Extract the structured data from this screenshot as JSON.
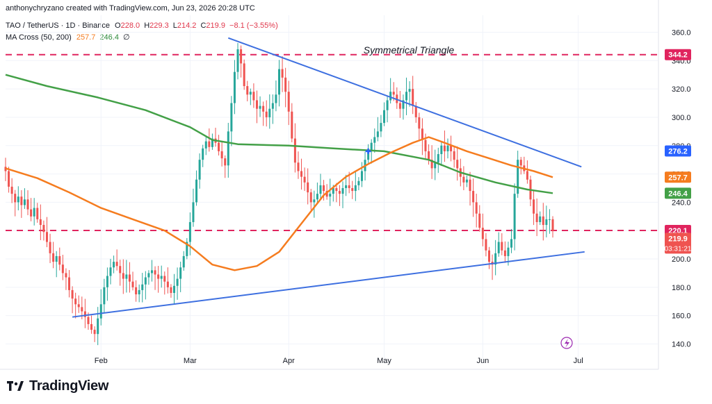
{
  "header": {
    "credit": "anthonychryzano created with TradingView.com, Jun 23, 2026 20:28 UTC",
    "symbol": "TAO / TetherUS · 1D · Binance",
    "ohlc": {
      "o_label": "O",
      "o": "228.0",
      "h_label": "H",
      "h": "229.3",
      "l_label": "L",
      "l": "214.2",
      "c_label": "C",
      "c": "219.9",
      "change": "−8.1 (−3.55%)"
    },
    "indicator": {
      "name": "MA Cross (50, 200)",
      "ma50": "257.7",
      "ma200": "246.4",
      "extra": "∅"
    }
  },
  "brand": {
    "name": "TradingView",
    "logo_icon": "tradingview-logo-icon"
  },
  "colors": {
    "up": "#26a69a",
    "down": "#ef5350",
    "ma50": "#f57c1f",
    "ma200": "#43a047",
    "trend": "#3d6fe0",
    "level": "#e0245e"
  },
  "chart_data": {
    "type": "candlestick",
    "title": "",
    "annotation": "Symmetrical Triangle",
    "y_range": [
      127,
      372
    ],
    "y_ticks": [
      "360.0",
      "340.0",
      "320.0",
      "300.0",
      "280.0",
      "260.0",
      "240.0",
      "220.0",
      "200.0",
      "180.0",
      "160.0",
      "140.0"
    ],
    "x_range": [
      "2026-01-02",
      "2026-07-26"
    ],
    "x_ticks": [
      {
        "label": "Feb",
        "date": "2026-02-01"
      },
      {
        "label": "Mar",
        "date": "2026-03-01"
      },
      {
        "label": "Apr",
        "date": "2026-04-01"
      },
      {
        "label": "May",
        "date": "2026-05-01"
      },
      {
        "label": "Jun",
        "date": "2026-06-01"
      },
      {
        "label": "Jul",
        "date": "2026-07-01"
      }
    ],
    "grid": true,
    "closes": [
      [
        "2026-01-02",
        262
      ],
      [
        "2026-01-03",
        251
      ],
      [
        "2026-01-04",
        246
      ],
      [
        "2026-01-05",
        240
      ],
      [
        "2026-01-06",
        244
      ],
      [
        "2026-01-07",
        238
      ],
      [
        "2026-01-08",
        242
      ],
      [
        "2026-01-09",
        235
      ],
      [
        "2026-01-10",
        230
      ],
      [
        "2026-01-11",
        236
      ],
      [
        "2026-01-12",
        228
      ],
      [
        "2026-01-13",
        224
      ],
      [
        "2026-01-14",
        219
      ],
      [
        "2026-01-15",
        212
      ],
      [
        "2026-01-16",
        204
      ],
      [
        "2026-01-17",
        198
      ],
      [
        "2026-01-18",
        202
      ],
      [
        "2026-01-19",
        196
      ],
      [
        "2026-01-20",
        190
      ],
      [
        "2026-01-21",
        187
      ],
      [
        "2026-01-22",
        178
      ],
      [
        "2026-01-23",
        172
      ],
      [
        "2026-01-24",
        168
      ],
      [
        "2026-01-25",
        166
      ],
      [
        "2026-01-26",
        163
      ],
      [
        "2026-01-27",
        159
      ],
      [
        "2026-01-28",
        154
      ],
      [
        "2026-01-29",
        150
      ],
      [
        "2026-01-30",
        147
      ],
      [
        "2026-01-31",
        158
      ],
      [
        "2026-02-01",
        168
      ],
      [
        "2026-02-02",
        180
      ],
      [
        "2026-02-03",
        188
      ],
      [
        "2026-02-04",
        194
      ],
      [
        "2026-02-05",
        198
      ],
      [
        "2026-02-06",
        195
      ],
      [
        "2026-02-07",
        190
      ],
      [
        "2026-02-08",
        186
      ],
      [
        "2026-02-09",
        189
      ],
      [
        "2026-02-10",
        184
      ],
      [
        "2026-02-11",
        180
      ],
      [
        "2026-02-12",
        175
      ],
      [
        "2026-02-13",
        178
      ],
      [
        "2026-02-14",
        182
      ],
      [
        "2026-02-15",
        187
      ],
      [
        "2026-02-16",
        190
      ],
      [
        "2026-02-17",
        192
      ],
      [
        "2026-02-18",
        189
      ],
      [
        "2026-02-19",
        186
      ],
      [
        "2026-02-20",
        188
      ],
      [
        "2026-02-21",
        184
      ],
      [
        "2026-02-22",
        180
      ],
      [
        "2026-02-23",
        176
      ],
      [
        "2026-02-24",
        181
      ],
      [
        "2026-02-25",
        186
      ],
      [
        "2026-02-26",
        194
      ],
      [
        "2026-02-27",
        202
      ],
      [
        "2026-02-28",
        212
      ],
      [
        "2026-03-01",
        226
      ],
      [
        "2026-03-02",
        240
      ],
      [
        "2026-03-03",
        256
      ],
      [
        "2026-03-04",
        270
      ],
      [
        "2026-03-05",
        278
      ],
      [
        "2026-03-06",
        283
      ],
      [
        "2026-03-07",
        279
      ],
      [
        "2026-03-08",
        285
      ],
      [
        "2026-03-09",
        282
      ],
      [
        "2026-03-10",
        276
      ],
      [
        "2026-03-11",
        271
      ],
      [
        "2026-03-12",
        266
      ],
      [
        "2026-03-13",
        290
      ],
      [
        "2026-03-14",
        310
      ],
      [
        "2026-03-15",
        332
      ],
      [
        "2026-03-16",
        348
      ],
      [
        "2026-03-17",
        338
      ],
      [
        "2026-03-18",
        322
      ],
      [
        "2026-03-19",
        316
      ],
      [
        "2026-03-20",
        318
      ],
      [
        "2026-03-21",
        312
      ],
      [
        "2026-03-22",
        306
      ],
      [
        "2026-03-23",
        308
      ],
      [
        "2026-03-24",
        304
      ],
      [
        "2026-03-25",
        300
      ],
      [
        "2026-03-26",
        306
      ],
      [
        "2026-03-27",
        310
      ],
      [
        "2026-03-28",
        316
      ],
      [
        "2026-03-29",
        334
      ],
      [
        "2026-03-30",
        328
      ],
      [
        "2026-03-31",
        318
      ],
      [
        "2026-04-01",
        304
      ],
      [
        "2026-04-02",
        285
      ],
      [
        "2026-04-03",
        268
      ],
      [
        "2026-04-04",
        262
      ],
      [
        "2026-04-05",
        258
      ],
      [
        "2026-04-06",
        254
      ],
      [
        "2026-04-07",
        247
      ],
      [
        "2026-04-08",
        240
      ],
      [
        "2026-04-09",
        242
      ],
      [
        "2026-04-10",
        246
      ],
      [
        "2026-04-11",
        252
      ],
      [
        "2026-04-12",
        248
      ],
      [
        "2026-04-13",
        244
      ],
      [
        "2026-04-14",
        246
      ],
      [
        "2026-04-15",
        250
      ],
      [
        "2026-04-16",
        248
      ],
      [
        "2026-04-17",
        246
      ],
      [
        "2026-04-18",
        250
      ],
      [
        "2026-04-19",
        252
      ],
      [
        "2026-04-20",
        250
      ],
      [
        "2026-04-21",
        248
      ],
      [
        "2026-04-22",
        252
      ],
      [
        "2026-04-23",
        255
      ],
      [
        "2026-04-24",
        262
      ],
      [
        "2026-04-25",
        270
      ],
      [
        "2026-04-26",
        276
      ],
      [
        "2026-04-27",
        282
      ],
      [
        "2026-04-28",
        286
      ],
      [
        "2026-04-29",
        290
      ],
      [
        "2026-04-30",
        296
      ],
      [
        "2026-05-01",
        305
      ],
      [
        "2026-05-02",
        312
      ],
      [
        "2026-05-03",
        318
      ],
      [
        "2026-05-04",
        316
      ],
      [
        "2026-05-05",
        310
      ],
      [
        "2026-05-06",
        306
      ],
      [
        "2026-05-07",
        312
      ],
      [
        "2026-05-08",
        318
      ],
      [
        "2026-05-09",
        320
      ],
      [
        "2026-05-10",
        308
      ],
      [
        "2026-05-11",
        300
      ],
      [
        "2026-05-12",
        292
      ],
      [
        "2026-05-13",
        284
      ],
      [
        "2026-05-14",
        276
      ],
      [
        "2026-05-15",
        270
      ],
      [
        "2026-05-16",
        264
      ],
      [
        "2026-05-17",
        268
      ],
      [
        "2026-05-18",
        274
      ],
      [
        "2026-05-19",
        280
      ],
      [
        "2026-05-20",
        276
      ],
      [
        "2026-05-21",
        280
      ],
      [
        "2026-05-22",
        276
      ],
      [
        "2026-05-23",
        270
      ],
      [
        "2026-05-24",
        264
      ],
      [
        "2026-05-25",
        258
      ],
      [
        "2026-05-26",
        254
      ],
      [
        "2026-05-27",
        256
      ],
      [
        "2026-05-28",
        248
      ],
      [
        "2026-05-29",
        240
      ],
      [
        "2026-05-30",
        232
      ],
      [
        "2026-05-31",
        222
      ],
      [
        "2026-06-01",
        214
      ],
      [
        "2026-06-02",
        206
      ],
      [
        "2026-06-03",
        198
      ],
      [
        "2026-06-04",
        196
      ],
      [
        "2026-06-05",
        204
      ],
      [
        "2026-06-06",
        212
      ],
      [
        "2026-06-07",
        206
      ],
      [
        "2026-06-08",
        202
      ],
      [
        "2026-06-09",
        208
      ],
      [
        "2026-06-10",
        214
      ],
      [
        "2026-06-11",
        246
      ],
      [
        "2026-06-12",
        270
      ],
      [
        "2026-06-13",
        266
      ],
      [
        "2026-06-14",
        262
      ],
      [
        "2026-06-15",
        256
      ],
      [
        "2026-06-16",
        242
      ],
      [
        "2026-06-17",
        232
      ],
      [
        "2026-06-18",
        226
      ],
      [
        "2026-06-19",
        230
      ],
      [
        "2026-06-20",
        224
      ],
      [
        "2026-06-21",
        228
      ],
      [
        "2026-06-22",
        228
      ],
      [
        "2026-06-23",
        219.9
      ]
    ],
    "ma50_points": [
      [
        "2026-01-02",
        264
      ],
      [
        "2026-01-12",
        257
      ],
      [
        "2026-01-22",
        247
      ],
      [
        "2026-02-01",
        236
      ],
      [
        "2026-02-11",
        228
      ],
      [
        "2026-02-21",
        220
      ],
      [
        "2026-03-01",
        209
      ],
      [
        "2026-03-08",
        196
      ],
      [
        "2026-03-15",
        192
      ],
      [
        "2026-03-22",
        195
      ],
      [
        "2026-03-29",
        205
      ],
      [
        "2026-04-05",
        225
      ],
      [
        "2026-04-12",
        245
      ],
      [
        "2026-04-19",
        258
      ],
      [
        "2026-04-26",
        267
      ],
      [
        "2026-05-03",
        275
      ],
      [
        "2026-05-10",
        282
      ],
      [
        "2026-05-15",
        286
      ],
      [
        "2026-05-20",
        282
      ],
      [
        "2026-05-27",
        276
      ],
      [
        "2026-06-03",
        271
      ],
      [
        "2026-06-10",
        266
      ],
      [
        "2026-06-17",
        262
      ],
      [
        "2026-06-23",
        257.7
      ]
    ],
    "ma200_points": [
      [
        "2026-01-02",
        330
      ],
      [
        "2026-01-15",
        322
      ],
      [
        "2026-01-31",
        314
      ],
      [
        "2026-02-15",
        305
      ],
      [
        "2026-03-01",
        293
      ],
      [
        "2026-03-08",
        284
      ],
      [
        "2026-03-16",
        281
      ],
      [
        "2026-04-01",
        280
      ],
      [
        "2026-04-15",
        278
      ],
      [
        "2026-05-01",
        276
      ],
      [
        "2026-05-15",
        270
      ],
      [
        "2026-05-25",
        261
      ],
      [
        "2026-06-05",
        254
      ],
      [
        "2026-06-15",
        249
      ],
      [
        "2026-06-23",
        246.4
      ]
    ],
    "trendlines": [
      {
        "name": "upper",
        "from": [
          "2026-03-13",
          356
        ],
        "to": [
          "2026-07-02",
          265
        ]
      },
      {
        "name": "lower",
        "from": [
          "2026-01-23",
          159
        ],
        "to": [
          "2026-07-03",
          205
        ]
      }
    ],
    "levels": [
      344.2,
      220.1
    ],
    "price_tags": [
      {
        "value": 344.2,
        "label": "344.2",
        "color": "#e0245e"
      },
      {
        "value": 276.2,
        "label": "276.2",
        "color": "#2962ff"
      },
      {
        "value": 257.7,
        "label": "257.7",
        "color": "#f57c1f"
      },
      {
        "value": 246.4,
        "label": "246.4",
        "color": "#43a047"
      },
      {
        "value": 220.1,
        "label": "220.1",
        "color": "#e0245e"
      },
      {
        "value": 214.5,
        "label": "219.9",
        "sub": "03:31:21",
        "color": "#ef5350"
      }
    ],
    "cross_marker": [
      "2026-04-26",
      276
    ]
  }
}
